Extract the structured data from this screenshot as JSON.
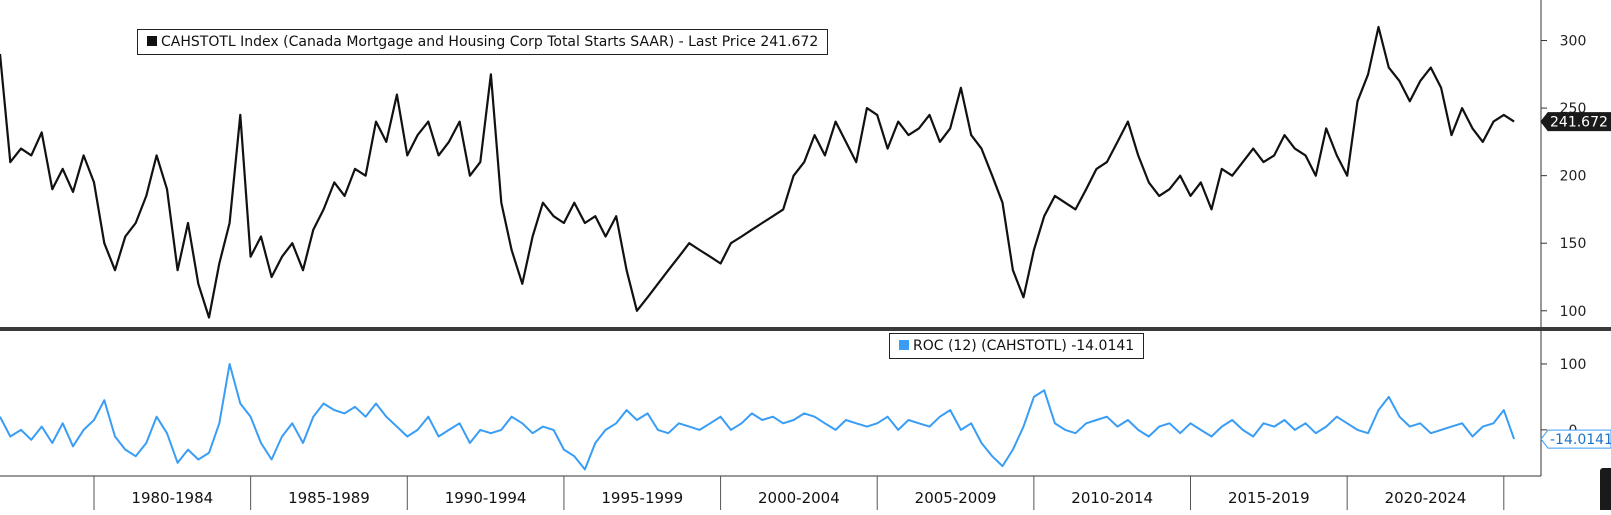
{
  "chart_data": [
    {
      "type": "line",
      "legend_text": "CAHSTOTL Index (Canada Mortgage and Housing Corp Total Starts SAAR) - Last Price 241.672",
      "series": [
        {
          "name": "CAHSTOTL Index (Canada Mortgage and Housing Corp Total Starts SAAR)",
          "color": "#111111",
          "x": [
            1977.0,
            1977.33,
            1977.67,
            1978.0,
            1978.33,
            1978.67,
            1979.0,
            1979.33,
            1979.67,
            1980.0,
            1980.33,
            1980.67,
            1981.0,
            1981.33,
            1981.67,
            1982.0,
            1982.33,
            1982.67,
            1983.0,
            1983.33,
            1983.67,
            1984.0,
            1984.33,
            1984.67,
            1985.0,
            1985.33,
            1985.67,
            1986.0,
            1986.33,
            1986.67,
            1987.0,
            1987.33,
            1987.67,
            1988.0,
            1988.33,
            1988.67,
            1989.0,
            1989.33,
            1989.67,
            1990.0,
            1990.33,
            1990.67,
            1991.0,
            1991.33,
            1991.67,
            1992.0,
            1992.33,
            1992.67,
            1993.0,
            1993.33,
            1993.67,
            1994.0,
            1994.33,
            1994.67,
            1995.0,
            1995.33,
            1995.67,
            1996.0,
            1996.33,
            1996.67,
            1997.0,
            1997.33,
            1997.67,
            1998.0,
            1998.33,
            1998.67,
            1999.0,
            1999.33,
            1999.67,
            2000.0,
            2000.33,
            2000.67,
            2001.0,
            2001.33,
            2001.67,
            2002.0,
            2002.33,
            2002.67,
            2003.0,
            2003.33,
            2003.67,
            2004.0,
            2004.33,
            2004.67,
            2005.0,
            2005.33,
            2005.67,
            2006.0,
            2006.33,
            2006.67,
            2007.0,
            2007.33,
            2007.67,
            2008.0,
            2008.33,
            2008.67,
            2009.0,
            2009.33,
            2009.67,
            2010.0,
            2010.33,
            2010.67,
            2011.0,
            2011.33,
            2011.67,
            2012.0,
            2012.33,
            2012.67,
            2013.0,
            2013.33,
            2013.67,
            2014.0,
            2014.33,
            2014.67,
            2015.0,
            2015.33,
            2015.67,
            2016.0,
            2016.33,
            2016.67,
            2017.0,
            2017.33,
            2017.67,
            2018.0,
            2018.33,
            2018.67,
            2019.0,
            2019.33,
            2019.67,
            2020.0,
            2020.33,
            2020.67,
            2021.0,
            2021.33,
            2021.67,
            2022.0,
            2022.33,
            2022.67,
            2023.0,
            2023.33,
            2023.67,
            2024.0,
            2024.33,
            2024.67,
            2025.0,
            2025.33
          ],
          "values": [
            290,
            210,
            220,
            215,
            232,
            190,
            205,
            188,
            215,
            195,
            150,
            130,
            155,
            165,
            185,
            215,
            190,
            130,
            165,
            120,
            95,
            135,
            165,
            245,
            140,
            155,
            125,
            140,
            150,
            130,
            160,
            175,
            195,
            185,
            205,
            200,
            240,
            225,
            260,
            215,
            230,
            240,
            215,
            225,
            240,
            200,
            210,
            275,
            180,
            145,
            120,
            155,
            180,
            170,
            165,
            180,
            165,
            170,
            155,
            170,
            130,
            100,
            110,
            120,
            130,
            140,
            150,
            145,
            140,
            135,
            150,
            155,
            160,
            165,
            170,
            175,
            200,
            210,
            230,
            215,
            240,
            225,
            210,
            250,
            245,
            220,
            240,
            230,
            235,
            245,
            225,
            235,
            265,
            230,
            220,
            200,
            180,
            130,
            110,
            145,
            170,
            185,
            180,
            175,
            190,
            205,
            210,
            225,
            240,
            215,
            195,
            185,
            190,
            200,
            185,
            195,
            175,
            205,
            200,
            210,
            220,
            210,
            215,
            230,
            220,
            215,
            200,
            235,
            215,
            200,
            255,
            275,
            310,
            280,
            270,
            255,
            270,
            280,
            265,
            230,
            250,
            235,
            225,
            240,
            245,
            240
          ],
          "last_value": "241.672"
        }
      ],
      "xlim": [
        1977.0,
        2025.9
      ],
      "ylim": [
        88,
        330
      ],
      "yticks": [
        "100",
        "150",
        "200",
        "250",
        "300"
      ],
      "grid": false
    },
    {
      "type": "line",
      "legend_text": "ROC (12) (CAHSTOTL) -14.0141",
      "series": [
        {
          "name": "ROC (12) (CAHSTOTL)",
          "color": "#3a9df5",
          "x": [
            1977.0,
            1977.33,
            1977.67,
            1978.0,
            1978.33,
            1978.67,
            1979.0,
            1979.33,
            1979.67,
            1980.0,
            1980.33,
            1980.67,
            1981.0,
            1981.33,
            1981.67,
            1982.0,
            1982.33,
            1982.67,
            1983.0,
            1983.33,
            1983.67,
            1984.0,
            1984.33,
            1984.67,
            1985.0,
            1985.33,
            1985.67,
            1986.0,
            1986.33,
            1986.67,
            1987.0,
            1987.33,
            1987.67,
            1988.0,
            1988.33,
            1988.67,
            1989.0,
            1989.33,
            1989.67,
            1990.0,
            1990.33,
            1990.67,
            1991.0,
            1991.33,
            1991.67,
            1992.0,
            1992.33,
            1992.67,
            1993.0,
            1993.33,
            1993.67,
            1994.0,
            1994.33,
            1994.67,
            1995.0,
            1995.33,
            1995.67,
            1996.0,
            1996.33,
            1996.67,
            1997.0,
            1997.33,
            1997.67,
            1998.0,
            1998.33,
            1998.67,
            1999.0,
            1999.33,
            1999.67,
            2000.0,
            2000.33,
            2000.67,
            2001.0,
            2001.33,
            2001.67,
            2002.0,
            2002.33,
            2002.67,
            2003.0,
            2003.33,
            2003.67,
            2004.0,
            2004.33,
            2004.67,
            2005.0,
            2005.33,
            2005.67,
            2006.0,
            2006.33,
            2006.67,
            2007.0,
            2007.33,
            2007.67,
            2008.0,
            2008.33,
            2008.67,
            2009.0,
            2009.33,
            2009.67,
            2010.0,
            2010.33,
            2010.67,
            2011.0,
            2011.33,
            2011.67,
            2012.0,
            2012.33,
            2012.67,
            2013.0,
            2013.33,
            2013.67,
            2014.0,
            2014.33,
            2014.67,
            2015.0,
            2015.33,
            2015.67,
            2016.0,
            2016.33,
            2016.67,
            2017.0,
            2017.33,
            2017.67,
            2018.0,
            2018.33,
            2018.67,
            2019.0,
            2019.33,
            2019.67,
            2020.0,
            2020.33,
            2020.67,
            2021.0,
            2021.33,
            2021.67,
            2022.0,
            2022.33,
            2022.67,
            2023.0,
            2023.33,
            2023.67,
            2024.0,
            2024.33,
            2024.67,
            2025.0,
            2025.33
          ],
          "values": [
            20,
            -10,
            0,
            -15,
            5,
            -20,
            10,
            -25,
            0,
            15,
            45,
            -10,
            -30,
            -40,
            -20,
            20,
            -5,
            -50,
            -30,
            -45,
            -35,
            10,
            100,
            40,
            20,
            -20,
            -45,
            -10,
            10,
            -20,
            20,
            40,
            30,
            25,
            35,
            20,
            40,
            20,
            5,
            -10,
            0,
            20,
            -10,
            0,
            10,
            -20,
            0,
            -5,
            0,
            20,
            10,
            -5,
            5,
            0,
            -30,
            -40,
            -60,
            -20,
            0,
            10,
            30,
            15,
            25,
            0,
            -5,
            10,
            5,
            0,
            10,
            20,
            0,
            10,
            25,
            15,
            20,
            10,
            15,
            25,
            20,
            10,
            0,
            15,
            10,
            5,
            10,
            20,
            0,
            15,
            10,
            5,
            20,
            30,
            0,
            10,
            -20,
            -40,
            -55,
            -30,
            5,
            50,
            60,
            10,
            0,
            -5,
            10,
            15,
            20,
            5,
            15,
            0,
            -10,
            5,
            10,
            -5,
            10,
            0,
            -10,
            5,
            15,
            0,
            -10,
            10,
            5,
            15,
            0,
            10,
            -5,
            5,
            20,
            10,
            0,
            -5,
            30,
            50,
            20,
            5,
            10,
            -5,
            0,
            5,
            10,
            -10,
            5,
            10,
            30,
            -14.0141
          ],
          "last_value": "-14.0141"
        }
      ],
      "xlim": [
        1977.0,
        2025.9
      ],
      "ylim": [
        -70,
        150
      ],
      "yticks": [
        "100",
        "0"
      ],
      "grid": false
    }
  ],
  "x_axis": {
    "tick_labels": [
      "1980-1984",
      "1985-1989",
      "1990-1994",
      "1995-1999",
      "2000-2004",
      "2005-2009",
      "2010-2014",
      "2015-2019",
      "2020-2024"
    ],
    "tick_years": [
      1980,
      1985,
      1990,
      1995,
      2000,
      2005,
      2010,
      2015,
      2020,
      2025
    ]
  }
}
